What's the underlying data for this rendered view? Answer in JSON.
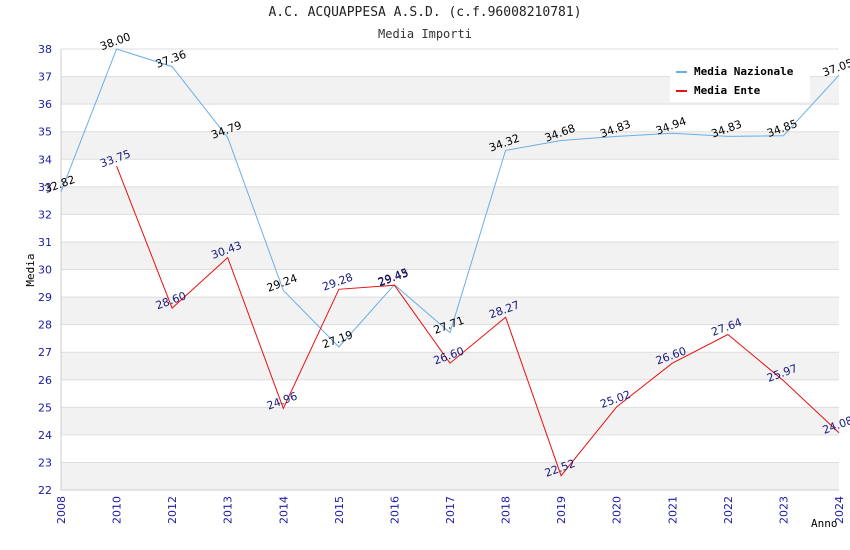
{
  "chart_data": {
    "type": "line",
    "title": "A.C. ACQUAPPESA A.S.D. (c.f.96008210781)",
    "subtitle": "Media Importi",
    "xlabel": "Anno",
    "ylabel": "Media",
    "categories": [
      "2008",
      "2010",
      "2012",
      "2013",
      "2014",
      "2015",
      "2016",
      "2017",
      "2018",
      "2019",
      "2020",
      "2021",
      "2022",
      "2023",
      "2024"
    ],
    "ylim": [
      22,
      38
    ],
    "yticks": [
      22,
      23,
      24,
      25,
      26,
      27,
      28,
      29,
      30,
      31,
      32,
      33,
      34,
      35,
      36,
      37,
      38
    ],
    "grid": true,
    "legend_position": "top-right",
    "series": [
      {
        "name": "Media Nazionale",
        "color": "#6aaee8",
        "label_color": "#000000",
        "values": [
          32.82,
          38.0,
          37.36,
          34.79,
          29.24,
          27.19,
          29.45,
          27.71,
          34.32,
          34.68,
          34.83,
          34.94,
          34.83,
          34.85,
          37.05
        ]
      },
      {
        "name": "Media Ente",
        "color": "#e81010",
        "label_color": "#1a1a80",
        "values": [
          null,
          33.75,
          28.6,
          30.43,
          24.96,
          29.28,
          29.43,
          26.6,
          28.27,
          22.52,
          25.02,
          26.6,
          27.64,
          25.97,
          24.08
        ]
      }
    ]
  }
}
